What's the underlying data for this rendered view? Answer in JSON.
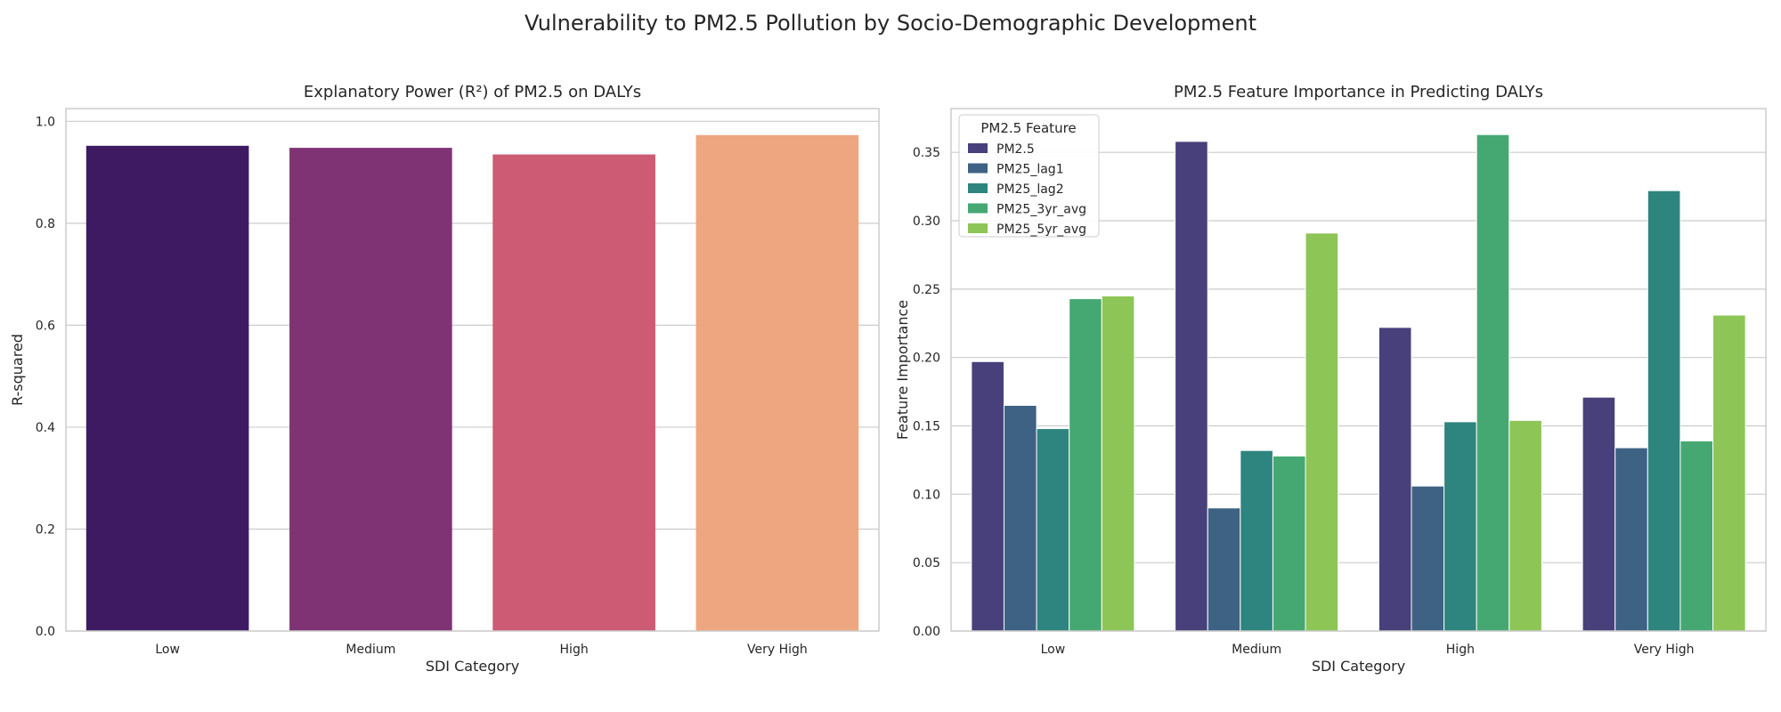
{
  "figure": {
    "title": "Vulnerability to PM2.5 Pollution by Socio-Demographic Development"
  },
  "chart_data": [
    {
      "type": "bar",
      "title": "Explanatory Power (R²) of PM2.5 on DALYs",
      "xlabel": "SDI Category",
      "ylabel": "R-squared",
      "categories": [
        "Low",
        "Medium",
        "High",
        "Very High"
      ],
      "values": [
        0.952,
        0.948,
        0.935,
        0.973
      ],
      "colors": [
        "#3e1a63",
        "#7f3375",
        "#cc5b73",
        "#eea680"
      ],
      "ylim": [
        0,
        1.025
      ],
      "yticks": [
        "0.0",
        "0.2",
        "0.4",
        "0.6",
        "0.8",
        "1.0"
      ],
      "ytick_values": [
        0,
        0.2,
        0.4,
        0.6,
        0.8,
        1.0
      ],
      "grid": true
    },
    {
      "type": "bar",
      "title": "PM2.5 Feature Importance in Predicting DALYs",
      "xlabel": "SDI Category",
      "ylabel": "Feature Importance",
      "categories": [
        "Low",
        "Medium",
        "High",
        "Very High"
      ],
      "legend": {
        "title": "PM2.5 Feature",
        "placement": "upper-left"
      },
      "series": [
        {
          "name": "PM2.5",
          "color": "#48407a",
          "values": [
            0.197,
            0.358,
            0.222,
            0.171
          ]
        },
        {
          "name": "PM25_lag1",
          "color": "#3e6284",
          "values": [
            0.165,
            0.09,
            0.106,
            0.134
          ]
        },
        {
          "name": "PM25_lag2",
          "color": "#2e847f",
          "values": [
            0.148,
            0.132,
            0.153,
            0.322
          ]
        },
        {
          "name": "PM25_3yr_avg",
          "color": "#45a872",
          "values": [
            0.243,
            0.128,
            0.363,
            0.139
          ]
        },
        {
          "name": "PM25_5yr_avg",
          "color": "#8dc557",
          "values": [
            0.245,
            0.291,
            0.154,
            0.231
          ]
        }
      ],
      "ylim": [
        0,
        0.382
      ],
      "yticks": [
        "0.00",
        "0.05",
        "0.10",
        "0.15",
        "0.20",
        "0.25",
        "0.30",
        "0.35"
      ],
      "ytick_values": [
        0,
        0.05,
        0.1,
        0.15,
        0.2,
        0.25,
        0.3,
        0.35
      ],
      "grid": true
    }
  ]
}
